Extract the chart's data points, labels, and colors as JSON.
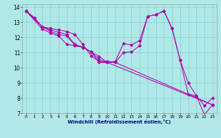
{
  "xlabel": "Windchill (Refroidissement éolien,°C)",
  "bg_color": "#b0e8e8",
  "line_color": "#aa00aa",
  "grid_color": "#88cccc",
  "xlim": [
    -0.5,
    23.5
  ],
  "ylim": [
    7,
    14.2
  ],
  "xticks": [
    0,
    1,
    2,
    3,
    4,
    5,
    6,
    7,
    8,
    9,
    10,
    11,
    12,
    13,
    14,
    15,
    16,
    17,
    18,
    19,
    20,
    21,
    22,
    23
  ],
  "yticks": [
    7,
    8,
    9,
    10,
    11,
    12,
    13,
    14
  ],
  "lines": [
    {
      "x": [
        0,
        1,
        2,
        3,
        4,
        5,
        6,
        7,
        8,
        9,
        10,
        11,
        12,
        13,
        14,
        15,
        16,
        17,
        18,
        19,
        20,
        21,
        22,
        23
      ],
      "y": [
        13.75,
        13.3,
        12.7,
        12.6,
        12.5,
        12.4,
        12.2,
        11.55,
        10.8,
        10.4,
        10.4,
        10.4,
        11.6,
        11.5,
        11.8,
        13.4,
        13.5,
        13.75,
        12.6,
        10.5,
        9.0,
        8.15,
        7.5,
        8.0
      ]
    },
    {
      "x": [
        0,
        1,
        2,
        3,
        4,
        5,
        6,
        7,
        8,
        9,
        10,
        11,
        12,
        13,
        14,
        15,
        16,
        17,
        18,
        19,
        20,
        21,
        22,
        23
      ],
      "y": [
        13.75,
        13.3,
        12.7,
        12.5,
        12.35,
        12.2,
        11.55,
        11.35,
        11.05,
        10.35,
        10.35,
        10.35,
        11.0,
        11.05,
        11.45,
        13.4,
        13.5,
        13.75,
        12.6,
        10.5,
        8.25,
        8.15,
        6.9,
        7.55
      ]
    },
    {
      "x": [
        0,
        2,
        3,
        4,
        5,
        6,
        7,
        8,
        9,
        10,
        11,
        23
      ],
      "y": [
        13.75,
        12.7,
        12.4,
        12.2,
        12.1,
        11.5,
        11.35,
        11.05,
        10.75,
        10.35,
        10.35,
        7.55
      ]
    },
    {
      "x": [
        0,
        2,
        3,
        4,
        5,
        6,
        7,
        8,
        9,
        10,
        23
      ],
      "y": [
        13.75,
        12.55,
        12.3,
        12.1,
        11.55,
        11.45,
        11.35,
        11.05,
        10.55,
        10.35,
        7.55
      ]
    }
  ]
}
